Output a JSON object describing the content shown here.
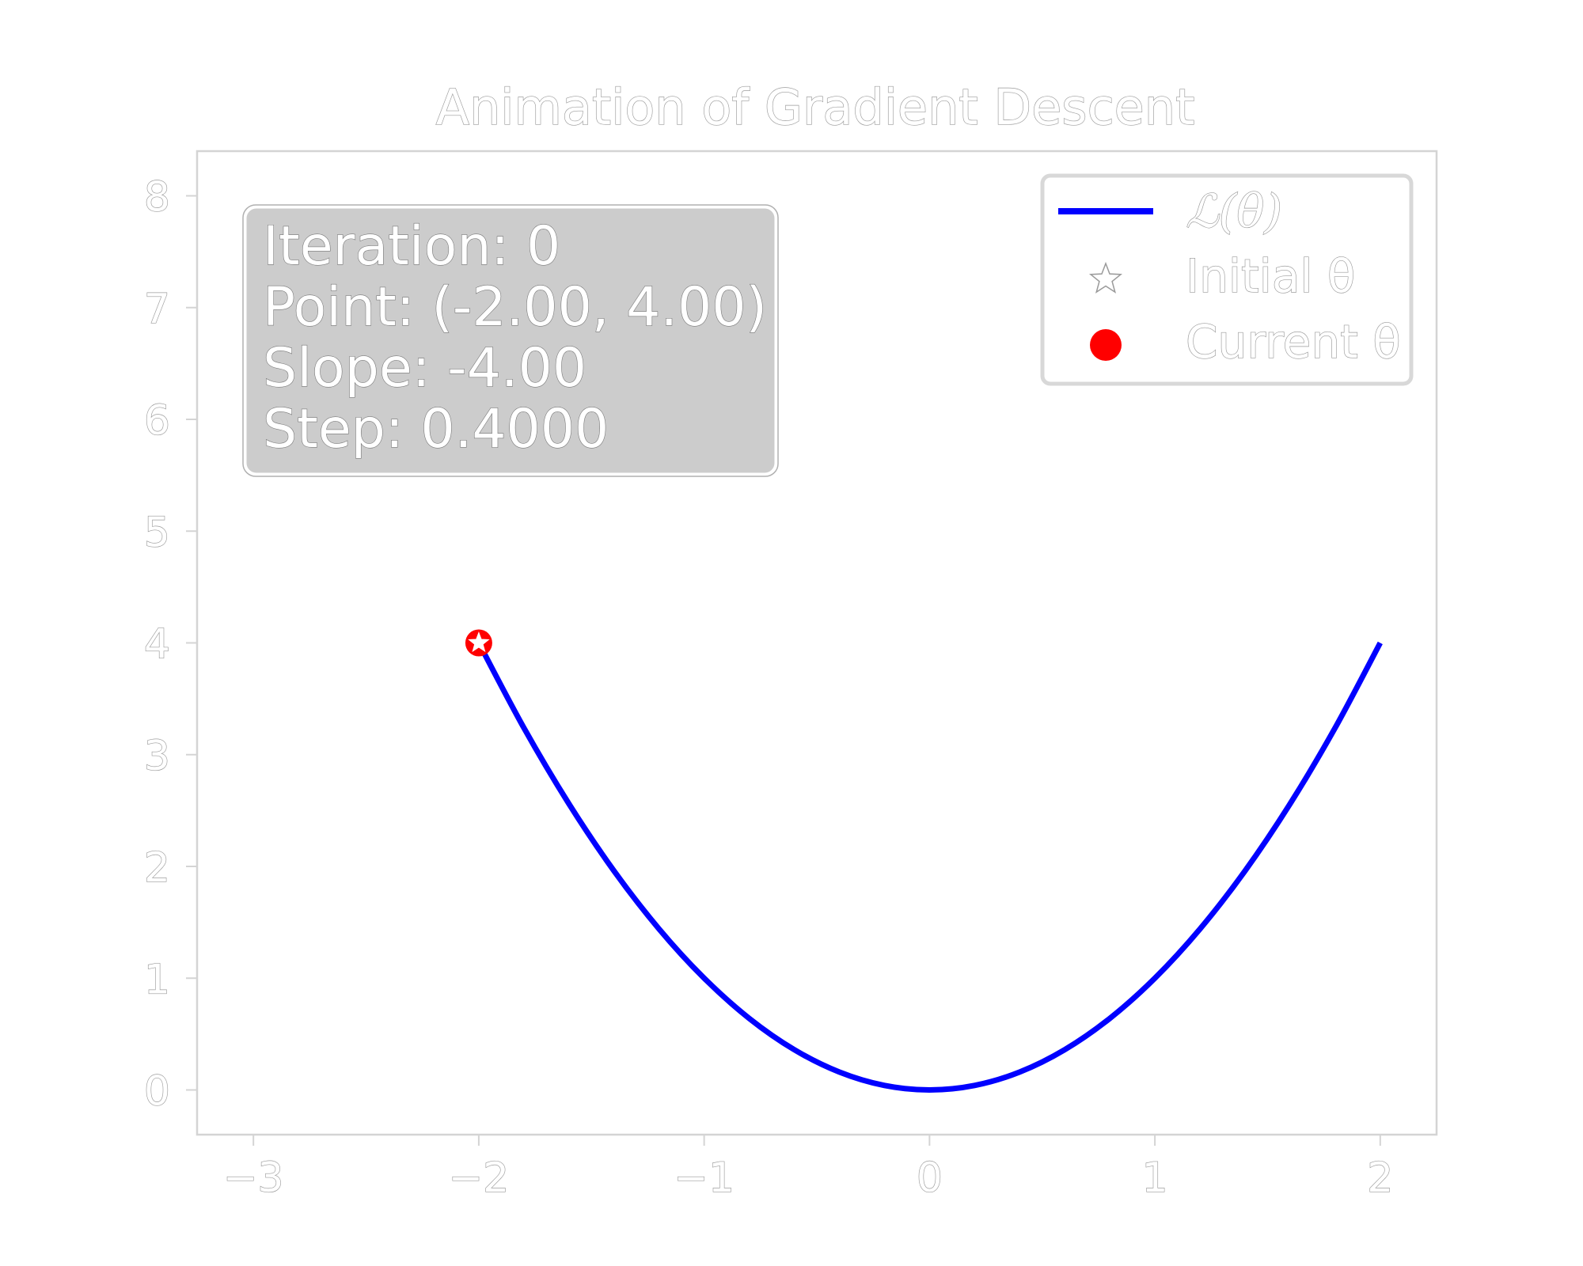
{
  "chart_data": {
    "type": "line",
    "title": "Animation of Gradient Descent",
    "xlabel": "",
    "ylabel": "",
    "xlim": [
      -3.25,
      2.25
    ],
    "ylim": [
      -0.4,
      8.4
    ],
    "xticks": [
      -3,
      -2,
      -1,
      0,
      1,
      2
    ],
    "xtick_labels": [
      "−3",
      "−2",
      "−1",
      "0",
      "1",
      "2"
    ],
    "yticks": [
      0,
      1,
      2,
      3,
      4,
      5,
      6,
      7,
      8
    ],
    "ytick_labels": [
      "0",
      "1",
      "2",
      "3",
      "4",
      "5",
      "6",
      "7",
      "8"
    ],
    "grid": false,
    "legend_position": "top-right",
    "series": [
      {
        "name": "ℒ(θ)",
        "kind": "line",
        "color": "#0000ff",
        "x": [
          -2.0,
          -1.8,
          -1.6,
          -1.4,
          -1.2,
          -1.0,
          -0.8,
          -0.6,
          -0.4,
          -0.2,
          0.0,
          0.2,
          0.4,
          0.6,
          0.8,
          1.0,
          1.2,
          1.4,
          1.6,
          1.8,
          2.0
        ],
        "y": [
          4.0,
          3.24,
          2.56,
          1.96,
          1.44,
          1.0,
          0.64,
          0.36,
          0.16,
          0.04,
          0.0,
          0.04,
          0.16,
          0.36,
          0.64,
          1.0,
          1.44,
          1.96,
          2.56,
          3.24,
          4.0
        ]
      },
      {
        "name": "Initial θ",
        "kind": "star",
        "color": "#ffffff",
        "x": [
          -2.0
        ],
        "y": [
          4.0
        ]
      },
      {
        "name": "Current θ",
        "kind": "circle",
        "color": "#ff0000",
        "x": [
          -2.0
        ],
        "y": [
          4.0
        ]
      }
    ],
    "info_box": {
      "lines": [
        "Iteration: 0",
        "Point: (-2.00, 4.00)",
        "Slope: -4.00",
        "Step: 0.4000"
      ],
      "background": "#cccccc"
    }
  }
}
